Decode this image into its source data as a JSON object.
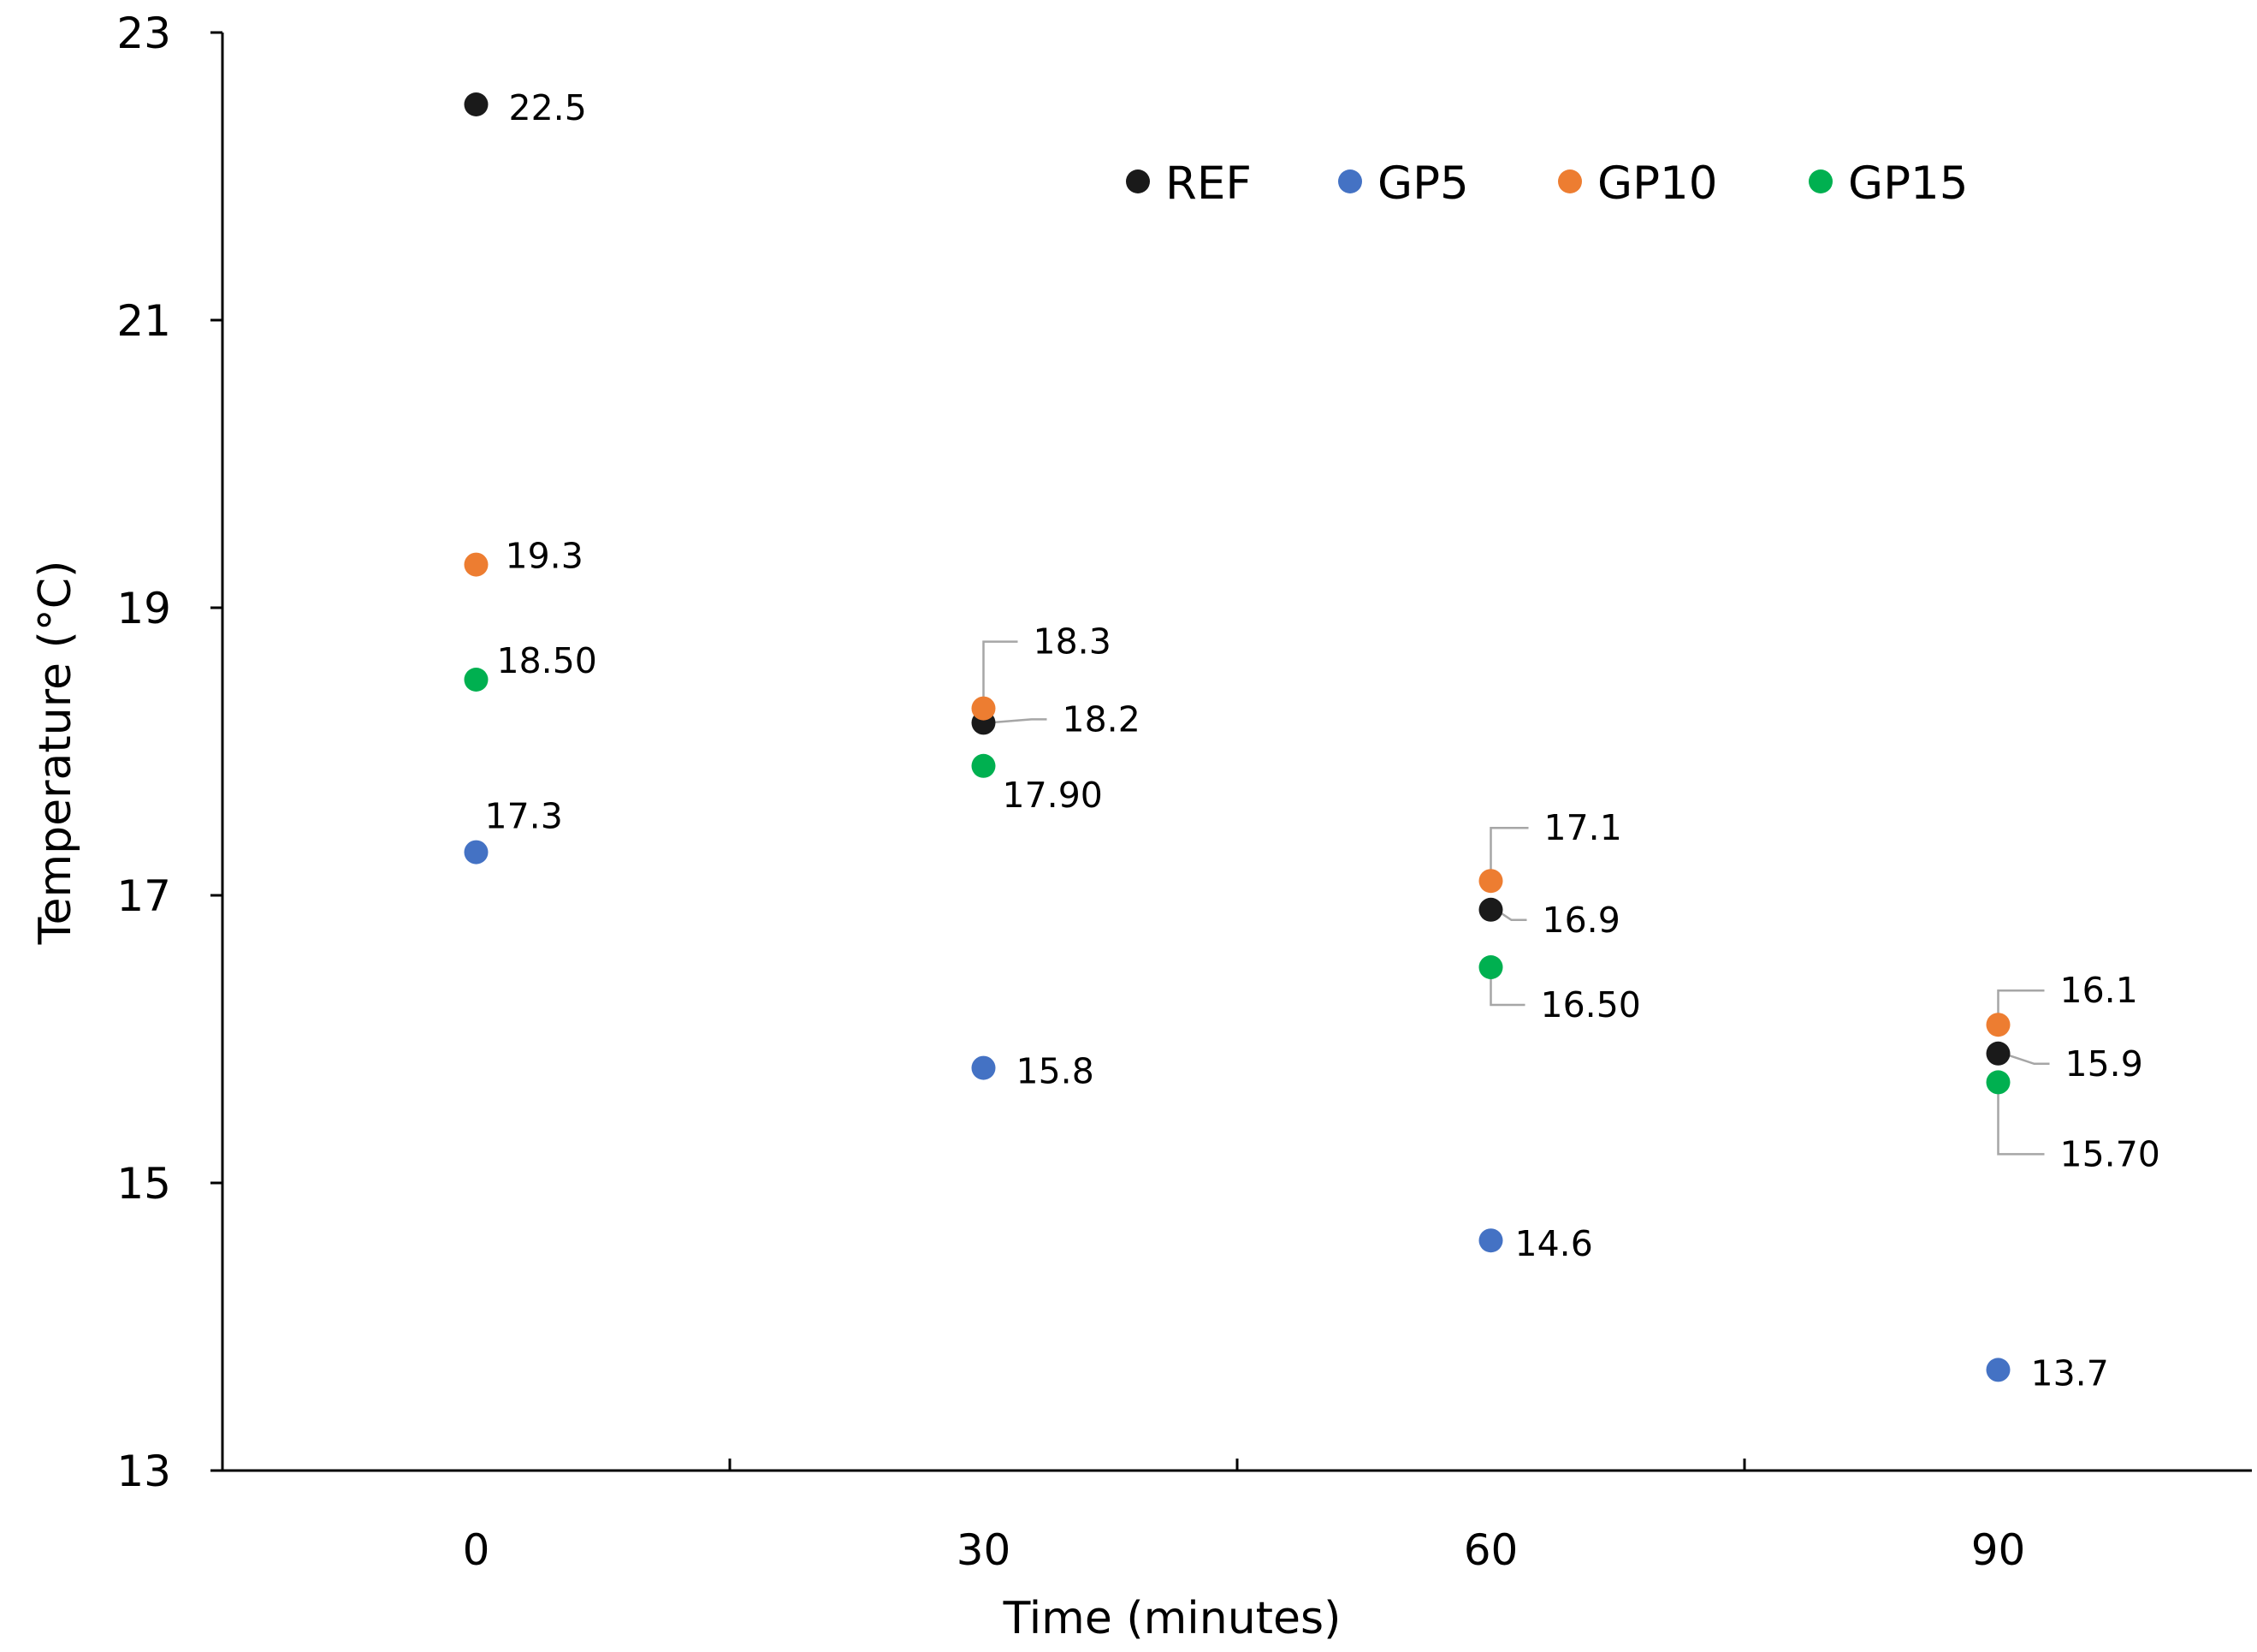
{
  "chart_data": {
    "type": "scatter",
    "xlabel": "Time (minutes)",
    "ylabel": "Temperature (°C)",
    "xlim": [
      -15,
      105
    ],
    "ylim": [
      13,
      23
    ],
    "x_ticks": [
      0,
      30,
      60,
      90
    ],
    "x_tick_labels": [
      "0",
      "30",
      "60",
      "90"
    ],
    "x_minor_ticks": [
      15,
      45,
      75
    ],
    "y_ticks": [
      13,
      15,
      17,
      19,
      21,
      23
    ],
    "y_tick_labels": [
      "13",
      "15",
      "17",
      "19",
      "21",
      "23"
    ],
    "grid": false,
    "legend_position": "top-right",
    "series": [
      {
        "name": "REF",
        "color": "#1a1a1a",
        "x": [
          0,
          30,
          60,
          90
        ],
        "y": [
          22.5,
          18.2,
          16.9,
          15.9
        ],
        "labels": [
          "22.5",
          "18.2",
          "16.9",
          "15.9"
        ]
      },
      {
        "name": "GP5",
        "color": "#4472c4",
        "x": [
          0,
          30,
          60,
          90
        ],
        "y": [
          17.3,
          15.8,
          14.6,
          13.7
        ],
        "labels": [
          "17.3",
          "15.8",
          "14.6",
          "13.7"
        ]
      },
      {
        "name": "GP10",
        "color": "#ed7d31",
        "x": [
          0,
          30,
          60,
          90
        ],
        "y": [
          19.3,
          18.3,
          17.1,
          16.1
        ],
        "labels": [
          "19.3",
          "18.3",
          "17.1",
          "16.1"
        ]
      },
      {
        "name": "GP15",
        "color": "#00b050",
        "x": [
          0,
          30,
          60,
          90
        ],
        "y": [
          18.5,
          17.9,
          16.5,
          15.7
        ],
        "labels": [
          "18.50",
          "17.90",
          "16.50",
          "15.70"
        ]
      }
    ]
  }
}
